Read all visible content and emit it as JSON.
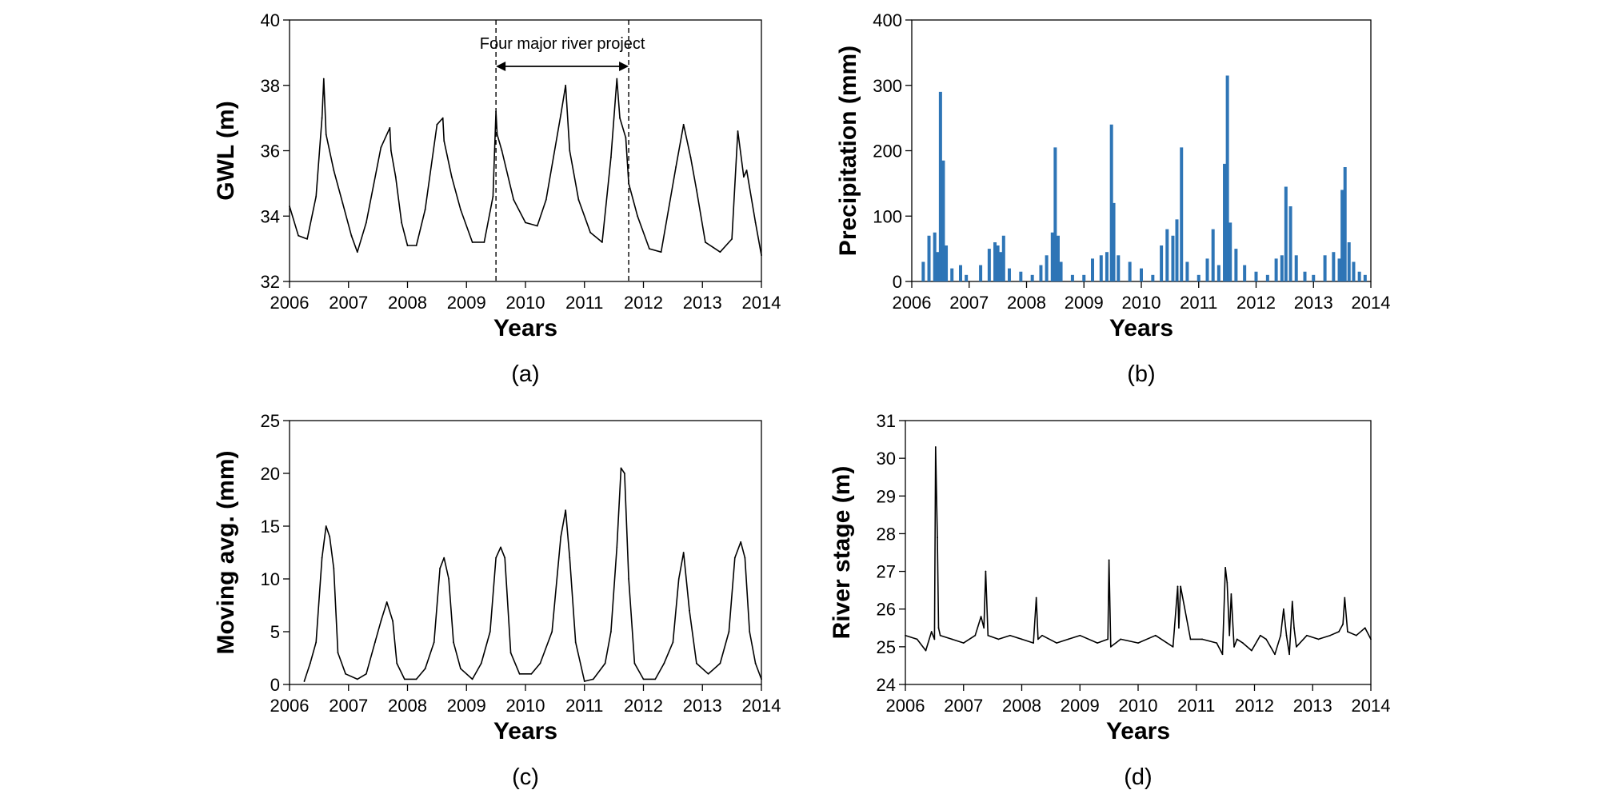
{
  "chart_data": [
    {
      "type": "line",
      "panel_label": "(a)",
      "xlabel": "Years",
      "ylabel": "GWL (m)",
      "xlim": [
        2006,
        2014
      ],
      "ylim": [
        32,
        40
      ],
      "xticks": [
        "2006",
        "2007",
        "2008",
        "2009",
        "2010",
        "2011",
        "2012",
        "2013",
        "2014"
      ],
      "yticks": [
        "32",
        "34",
        "36",
        "38",
        "40"
      ],
      "color": "#000000",
      "annotation": {
        "text": "Four major river project",
        "start": 2009.5,
        "end": 2011.75
      },
      "x": [
        2006.0,
        2006.15,
        2006.3,
        2006.45,
        2006.55,
        2006.58,
        2006.62,
        2006.75,
        2006.9,
        2007.05,
        2007.15,
        2007.3,
        2007.55,
        2007.7,
        2007.72,
        2007.8,
        2007.9,
        2008.0,
        2008.15,
        2008.3,
        2008.5,
        2008.6,
        2008.62,
        2008.75,
        2008.9,
        2009.1,
        2009.3,
        2009.45,
        2009.5,
        2009.52,
        2009.6,
        2009.8,
        2010.0,
        2010.2,
        2010.35,
        2010.6,
        2010.68,
        2010.75,
        2010.9,
        2011.1,
        2011.3,
        2011.45,
        2011.55,
        2011.6,
        2011.7,
        2011.75,
        2011.9,
        2012.1,
        2012.3,
        2012.55,
        2012.68,
        2012.8,
        2012.9,
        2013.05,
        2013.3,
        2013.5,
        2013.6,
        2013.7,
        2013.75,
        2013.9,
        2014.0
      ],
      "values": [
        34.3,
        33.4,
        33.3,
        34.6,
        37.0,
        38.2,
        36.5,
        35.4,
        34.4,
        33.4,
        32.9,
        33.8,
        36.1,
        36.7,
        36.0,
        35.2,
        33.8,
        33.1,
        33.1,
        34.2,
        36.8,
        37.0,
        36.3,
        35.2,
        34.2,
        33.2,
        33.2,
        34.6,
        37.2,
        36.5,
        36.0,
        34.5,
        33.8,
        33.7,
        34.5,
        37.1,
        38.0,
        36.0,
        34.5,
        33.5,
        33.2,
        35.8,
        38.2,
        37.0,
        36.4,
        35.0,
        34.0,
        33.0,
        32.9,
        35.5,
        36.8,
        35.8,
        34.8,
        33.2,
        32.9,
        33.3,
        36.6,
        35.2,
        35.4,
        33.8,
        32.8
      ]
    },
    {
      "type": "bar",
      "panel_label": "(b)",
      "xlabel": "Years",
      "ylabel": "Precipitation (mm)",
      "xlim": [
        2006,
        2014
      ],
      "ylim": [
        0,
        400
      ],
      "xticks": [
        "2006",
        "2007",
        "2008",
        "2009",
        "2010",
        "2011",
        "2012",
        "2013",
        "2014"
      ],
      "yticks": [
        "0",
        "100",
        "200",
        "300",
        "400"
      ],
      "color": "#2e75b6",
      "x": [
        2006.2,
        2006.3,
        2006.4,
        2006.45,
        2006.5,
        2006.55,
        2006.6,
        2006.7,
        2006.85,
        2006.95,
        2007.2,
        2007.35,
        2007.45,
        2007.5,
        2007.55,
        2007.6,
        2007.7,
        2007.9,
        2008.1,
        2008.25,
        2008.35,
        2008.45,
        2008.5,
        2008.55,
        2008.6,
        2008.8,
        2009.0,
        2009.15,
        2009.3,
        2009.4,
        2009.48,
        2009.52,
        2009.6,
        2009.8,
        2010.0,
        2010.2,
        2010.35,
        2010.45,
        2010.55,
        2010.62,
        2010.7,
        2010.8,
        2011.0,
        2011.15,
        2011.25,
        2011.35,
        2011.45,
        2011.5,
        2011.55,
        2011.65,
        2011.8,
        2012.0,
        2012.2,
        2012.35,
        2012.45,
        2012.52,
        2012.6,
        2012.7,
        2012.85,
        2013.0,
        2013.2,
        2013.35,
        2013.45,
        2013.5,
        2013.55,
        2013.62,
        2013.7,
        2013.8,
        2013.9
      ],
      "values": [
        30,
        70,
        75,
        45,
        290,
        185,
        55,
        20,
        25,
        10,
        25,
        50,
        60,
        55,
        45,
        70,
        20,
        15,
        10,
        25,
        40,
        75,
        205,
        70,
        30,
        10,
        10,
        35,
        40,
        45,
        240,
        120,
        40,
        30,
        20,
        10,
        55,
        80,
        70,
        95,
        205,
        30,
        10,
        35,
        80,
        25,
        180,
        315,
        90,
        50,
        25,
        15,
        10,
        35,
        40,
        145,
        115,
        40,
        15,
        10,
        40,
        45,
        35,
        140,
        175,
        60,
        30,
        15,
        10
      ]
    },
    {
      "type": "line",
      "panel_label": "(c)",
      "xlabel": "Years",
      "ylabel": "Moving avg.  (mm)",
      "xlim": [
        2006,
        2014
      ],
      "ylim": [
        0,
        25
      ],
      "xticks": [
        "2006",
        "2007",
        "2008",
        "2009",
        "2010",
        "2011",
        "2012",
        "2013",
        "2014"
      ],
      "yticks": [
        "0",
        "5",
        "10",
        "15",
        "20",
        "25"
      ],
      "color": "#000000",
      "x": [
        2006.25,
        2006.35,
        2006.45,
        2006.55,
        2006.62,
        2006.68,
        2006.75,
        2006.82,
        2006.95,
        2007.15,
        2007.3,
        2007.45,
        2007.55,
        2007.65,
        2007.75,
        2007.82,
        2007.95,
        2008.15,
        2008.3,
        2008.45,
        2008.55,
        2008.62,
        2008.7,
        2008.78,
        2008.9,
        2009.1,
        2009.25,
        2009.4,
        2009.5,
        2009.58,
        2009.65,
        2009.75,
        2009.9,
        2010.1,
        2010.25,
        2010.45,
        2010.6,
        2010.68,
        2010.75,
        2010.85,
        2011.0,
        2011.15,
        2011.35,
        2011.45,
        2011.55,
        2011.62,
        2011.68,
        2011.75,
        2011.85,
        2012.0,
        2012.2,
        2012.35,
        2012.5,
        2012.6,
        2012.68,
        2012.78,
        2012.9,
        2013.1,
        2013.3,
        2013.45,
        2013.55,
        2013.65,
        2013.72,
        2013.8,
        2013.9,
        2014.0
      ],
      "values": [
        0.3,
        2,
        4,
        12,
        15,
        14,
        11,
        3,
        1,
        0.5,
        1,
        4,
        6,
        7.8,
        6,
        2,
        0.5,
        0.5,
        1.5,
        4,
        11,
        12,
        10,
        4,
        1.5,
        0.5,
        2,
        5,
        12,
        13,
        12,
        3,
        1,
        1,
        2,
        5,
        14,
        16.5,
        12,
        4,
        0.3,
        0.5,
        2,
        5,
        13,
        20.5,
        20,
        10,
        2,
        0.5,
        0.5,
        2,
        4,
        10,
        12.5,
        7,
        2,
        1,
        2,
        5,
        12,
        13.5,
        12,
        5,
        2,
        0.5
      ]
    },
    {
      "type": "line",
      "panel_label": "(d)",
      "xlabel": "Years",
      "ylabel": "River stage (m)",
      "xlim": [
        2006,
        2014
      ],
      "ylim": [
        24,
        31
      ],
      "xticks": [
        "2006",
        "2007",
        "2008",
        "2009",
        "2010",
        "2011",
        "2012",
        "2013",
        "2014"
      ],
      "yticks": [
        "24",
        "25",
        "26",
        "27",
        "28",
        "29",
        "30",
        "31"
      ],
      "color": "#000000",
      "x": [
        2006.0,
        2006.2,
        2006.35,
        2006.45,
        2006.5,
        2006.52,
        2006.55,
        2006.57,
        2006.6,
        2006.8,
        2007.0,
        2007.2,
        2007.3,
        2007.35,
        2007.38,
        2007.42,
        2007.6,
        2007.8,
        2008.0,
        2008.2,
        2008.25,
        2008.28,
        2008.35,
        2008.6,
        2008.8,
        2009.0,
        2009.3,
        2009.48,
        2009.5,
        2009.53,
        2009.7,
        2010.0,
        2010.3,
        2010.6,
        2010.68,
        2010.7,
        2010.73,
        2010.9,
        2011.1,
        2011.35,
        2011.45,
        2011.5,
        2011.53,
        2011.57,
        2011.6,
        2011.65,
        2011.7,
        2011.8,
        2011.95,
        2012.1,
        2012.2,
        2012.35,
        2012.45,
        2012.5,
        2012.55,
        2012.6,
        2012.65,
        2012.68,
        2012.72,
        2012.9,
        2013.1,
        2013.3,
        2013.45,
        2013.52,
        2013.55,
        2013.6,
        2013.75,
        2013.9,
        2014.0
      ],
      "values": [
        25.3,
        25.2,
        24.9,
        25.4,
        25.2,
        30.3,
        27.9,
        25.5,
        25.3,
        25.2,
        25.1,
        25.3,
        25.8,
        25.5,
        27.0,
        25.3,
        25.2,
        25.3,
        25.2,
        25.1,
        26.3,
        25.2,
        25.3,
        25.1,
        25.2,
        25.3,
        25.1,
        25.2,
        27.3,
        25.0,
        25.2,
        25.1,
        25.3,
        25.0,
        26.6,
        25.5,
        26.6,
        25.2,
        25.2,
        25.1,
        24.8,
        27.1,
        26.7,
        25.3,
        26.4,
        25.0,
        25.2,
        25.1,
        24.9,
        25.3,
        25.2,
        24.8,
        25.3,
        26.0,
        25.3,
        24.8,
        26.2,
        25.5,
        25.0,
        25.3,
        25.2,
        25.3,
        25.4,
        25.6,
        26.3,
        25.4,
        25.3,
        25.5,
        25.2
      ]
    }
  ]
}
